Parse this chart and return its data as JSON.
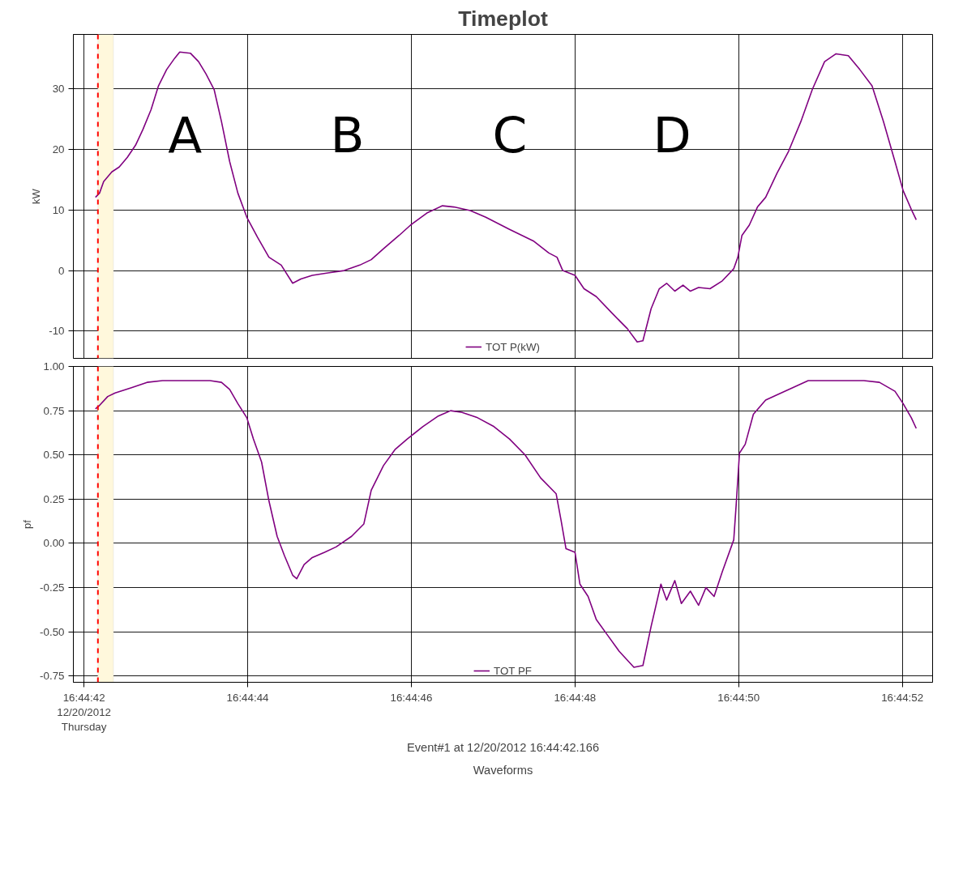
{
  "chart_data": [
    {
      "type": "line",
      "title": "Timeplot",
      "ylabel": "kW",
      "tick_labels": "y",
      "grid": true,
      "legend": "bottom",
      "marker": "none",
      "line_style": "solid",
      "xlim": [
        60281.87,
        60292.37
      ],
      "ylim": [
        -14.5,
        39
      ],
      "yticks": [
        -10,
        0,
        10,
        20,
        30
      ],
      "xticks": [
        {
          "value": 60282,
          "label": null
        },
        {
          "value": 60284,
          "label": null
        },
        {
          "value": 60286,
          "label": null
        },
        {
          "value": 60288,
          "label": null
        },
        {
          "value": 60290,
          "label": null
        },
        {
          "value": 60292,
          "label": null
        }
      ],
      "ref_lines": [
        {
          "axis": "x",
          "value": 60282.17,
          "label": null,
          "color": "#ff0000",
          "line_style": "dashed"
        }
      ],
      "bands": [
        {
          "axis": "x",
          "from": 60282.17,
          "to": 60282.36,
          "label": null,
          "color": "#fff8dc"
        }
      ],
      "annotations": [
        "A",
        "B",
        "C",
        "D"
      ],
      "series": [
        {
          "name": "TOT P(kW)",
          "color": "#800080",
          "x": [
            60282.14,
            60282.19,
            60282.24,
            60282.34,
            60282.43,
            60282.53,
            60282.63,
            60282.72,
            60282.82,
            60282.91,
            60283.01,
            60283.11,
            60283.17,
            60283.3,
            60283.4,
            60283.49,
            60283.59,
            60283.68,
            60283.78,
            60283.88,
            60283.99,
            60284.12,
            60284.26,
            60284.41,
            60284.55,
            60284.65,
            60284.79,
            60284.98,
            60285.18,
            60285.37,
            60285.51,
            60285.66,
            60285.85,
            60285.99,
            60286.19,
            60286.38,
            60286.52,
            60286.72,
            60286.91,
            60287.2,
            60287.49,
            60287.68,
            60287.78,
            60287.85,
            60288,
            60288.11,
            60288.26,
            60288.45,
            60288.64,
            60288.76,
            60288.83,
            60288.93,
            60289.03,
            60289.12,
            60289.22,
            60289.32,
            60289.41,
            60289.51,
            60289.65,
            60289.8,
            60289.94,
            60289.99,
            60290.04,
            60290.13,
            60290.23,
            60290.33,
            60290.47,
            60290.61,
            60290.76,
            60290.9,
            60291.05,
            60291.19,
            60291.34,
            60291.48,
            60291.63,
            60291.77,
            60291.91,
            60292.01,
            60292.11,
            60292.17
          ],
          "values": [
            12.1,
            12.8,
            14.7,
            16.3,
            17.1,
            18.7,
            20.7,
            23.3,
            26.6,
            30.5,
            33.2,
            35.1,
            36.1,
            35.9,
            34.5,
            32.5,
            29.9,
            24.6,
            18.0,
            12.8,
            8.8,
            5.5,
            2.2,
            0.9,
            -2.1,
            -1.4,
            -0.8,
            -0.4,
            0.0,
            0.9,
            1.8,
            3.6,
            5.8,
            7.5,
            9.5,
            10.7,
            10.5,
            9.9,
            8.8,
            6.8,
            4.9,
            2.9,
            2.2,
            0.0,
            -0.8,
            -3.0,
            -4.3,
            -7.0,
            -9.6,
            -11.8,
            -11.6,
            -6.3,
            -3.0,
            -2.1,
            -3.4,
            -2.4,
            -3.4,
            -2.8,
            -3.0,
            -1.7,
            0.3,
            2.2,
            5.8,
            7.5,
            10.5,
            12.1,
            16.1,
            19.7,
            24.6,
            29.9,
            34.5,
            35.8,
            35.5,
            33.2,
            30.5,
            24.6,
            18.0,
            13.2,
            10.1,
            8.4
          ]
        }
      ]
    },
    {
      "type": "line",
      "ylabel": "pf",
      "grid": true,
      "legend": "bottom",
      "marker": "none",
      "line_style": "solid",
      "xlim": [
        60281.87,
        60292.37
      ],
      "ylim": [
        -0.785,
        1.0
      ],
      "yticks": [
        {
          "value": -0.75,
          "label": "-0.75"
        },
        {
          "value": -0.5,
          "label": "-0.50"
        },
        {
          "value": -0.25,
          "label": "-0.25"
        },
        {
          "value": 0,
          "label": "0.00"
        },
        {
          "value": 0.25,
          "label": "0.25"
        },
        {
          "value": 0.5,
          "label": "0.50"
        },
        {
          "value": 0.75,
          "label": "0.75"
        },
        {
          "value": 1,
          "label": "1.00"
        }
      ],
      "xticks": [
        {
          "value": 60282,
          "label": "16:44:42\n12/20/2012\nThursday"
        },
        {
          "value": 60284,
          "label": "16:44:44"
        },
        {
          "value": 60286,
          "label": "16:44:46"
        },
        {
          "value": 60288,
          "label": "16:44:48"
        },
        {
          "value": 60290,
          "label": "16:44:50"
        },
        {
          "value": 60292,
          "label": "16:44:52"
        }
      ],
      "ref_lines": [
        {
          "axis": "x",
          "value": 60282.17,
          "label": null,
          "color": "#ff0000",
          "line_style": "dashed"
        }
      ],
      "bands": [
        {
          "axis": "x",
          "from": 60282.17,
          "to": 60282.36,
          "label": null,
          "color": "#fff8dc"
        }
      ],
      "annotations": [
        "Event#1 at 12/20/2012 16:44:42.166",
        "Waveforms"
      ],
      "series": [
        {
          "name": "TOT PF",
          "color": "#800080",
          "x": [
            60282.14,
            60282.19,
            60282.29,
            60282.38,
            60282.58,
            60282.77,
            60282.96,
            60283.25,
            60283.54,
            60283.68,
            60283.78,
            60283.88,
            60283.99,
            60284.07,
            60284.17,
            60284.26,
            60284.36,
            60284.45,
            60284.55,
            60284.6,
            60284.69,
            60284.79,
            60284.94,
            60285.08,
            60285.27,
            60285.42,
            60285.51,
            60285.66,
            60285.8,
            60285.95,
            60286.14,
            60286.33,
            60286.48,
            60286.62,
            60286.81,
            60287.01,
            60287.2,
            60287.39,
            60287.58,
            60287.77,
            60287.83,
            60287.89,
            60288,
            60288.06,
            60288.16,
            60288.26,
            60288.4,
            60288.54,
            60288.72,
            60288.83,
            60288.93,
            60289.05,
            60289.12,
            60289.22,
            60289.3,
            60289.41,
            60289.51,
            60289.6,
            60289.7,
            60289.8,
            60289.94,
            60289.97,
            60290.01,
            60290.08,
            60290.18,
            60290.33,
            60290.47,
            60290.66,
            60290.85,
            60291.14,
            60291.53,
            60291.72,
            60291.91,
            60292.01,
            60292.11,
            60292.17
          ],
          "values": [
            0.76,
            0.78,
            0.83,
            0.85,
            0.88,
            0.91,
            0.92,
            0.92,
            0.92,
            0.91,
            0.87,
            0.79,
            0.71,
            0.59,
            0.46,
            0.24,
            0.04,
            -0.07,
            -0.18,
            -0.2,
            -0.12,
            -0.08,
            -0.05,
            -0.02,
            0.04,
            0.11,
            0.3,
            0.44,
            0.53,
            0.59,
            0.66,
            0.72,
            0.75,
            0.74,
            0.71,
            0.66,
            0.59,
            0.5,
            0.37,
            0.28,
            0.13,
            -0.03,
            -0.05,
            -0.23,
            -0.3,
            -0.43,
            -0.52,
            -0.61,
            -0.7,
            -0.69,
            -0.47,
            -0.23,
            -0.32,
            -0.21,
            -0.34,
            -0.27,
            -0.35,
            -0.25,
            -0.3,
            -0.16,
            0.02,
            0.22,
            0.51,
            0.56,
            0.73,
            0.81,
            0.84,
            0.88,
            0.92,
            0.92,
            0.92,
            0.91,
            0.86,
            0.79,
            0.71,
            0.65
          ]
        }
      ]
    }
  ]
}
